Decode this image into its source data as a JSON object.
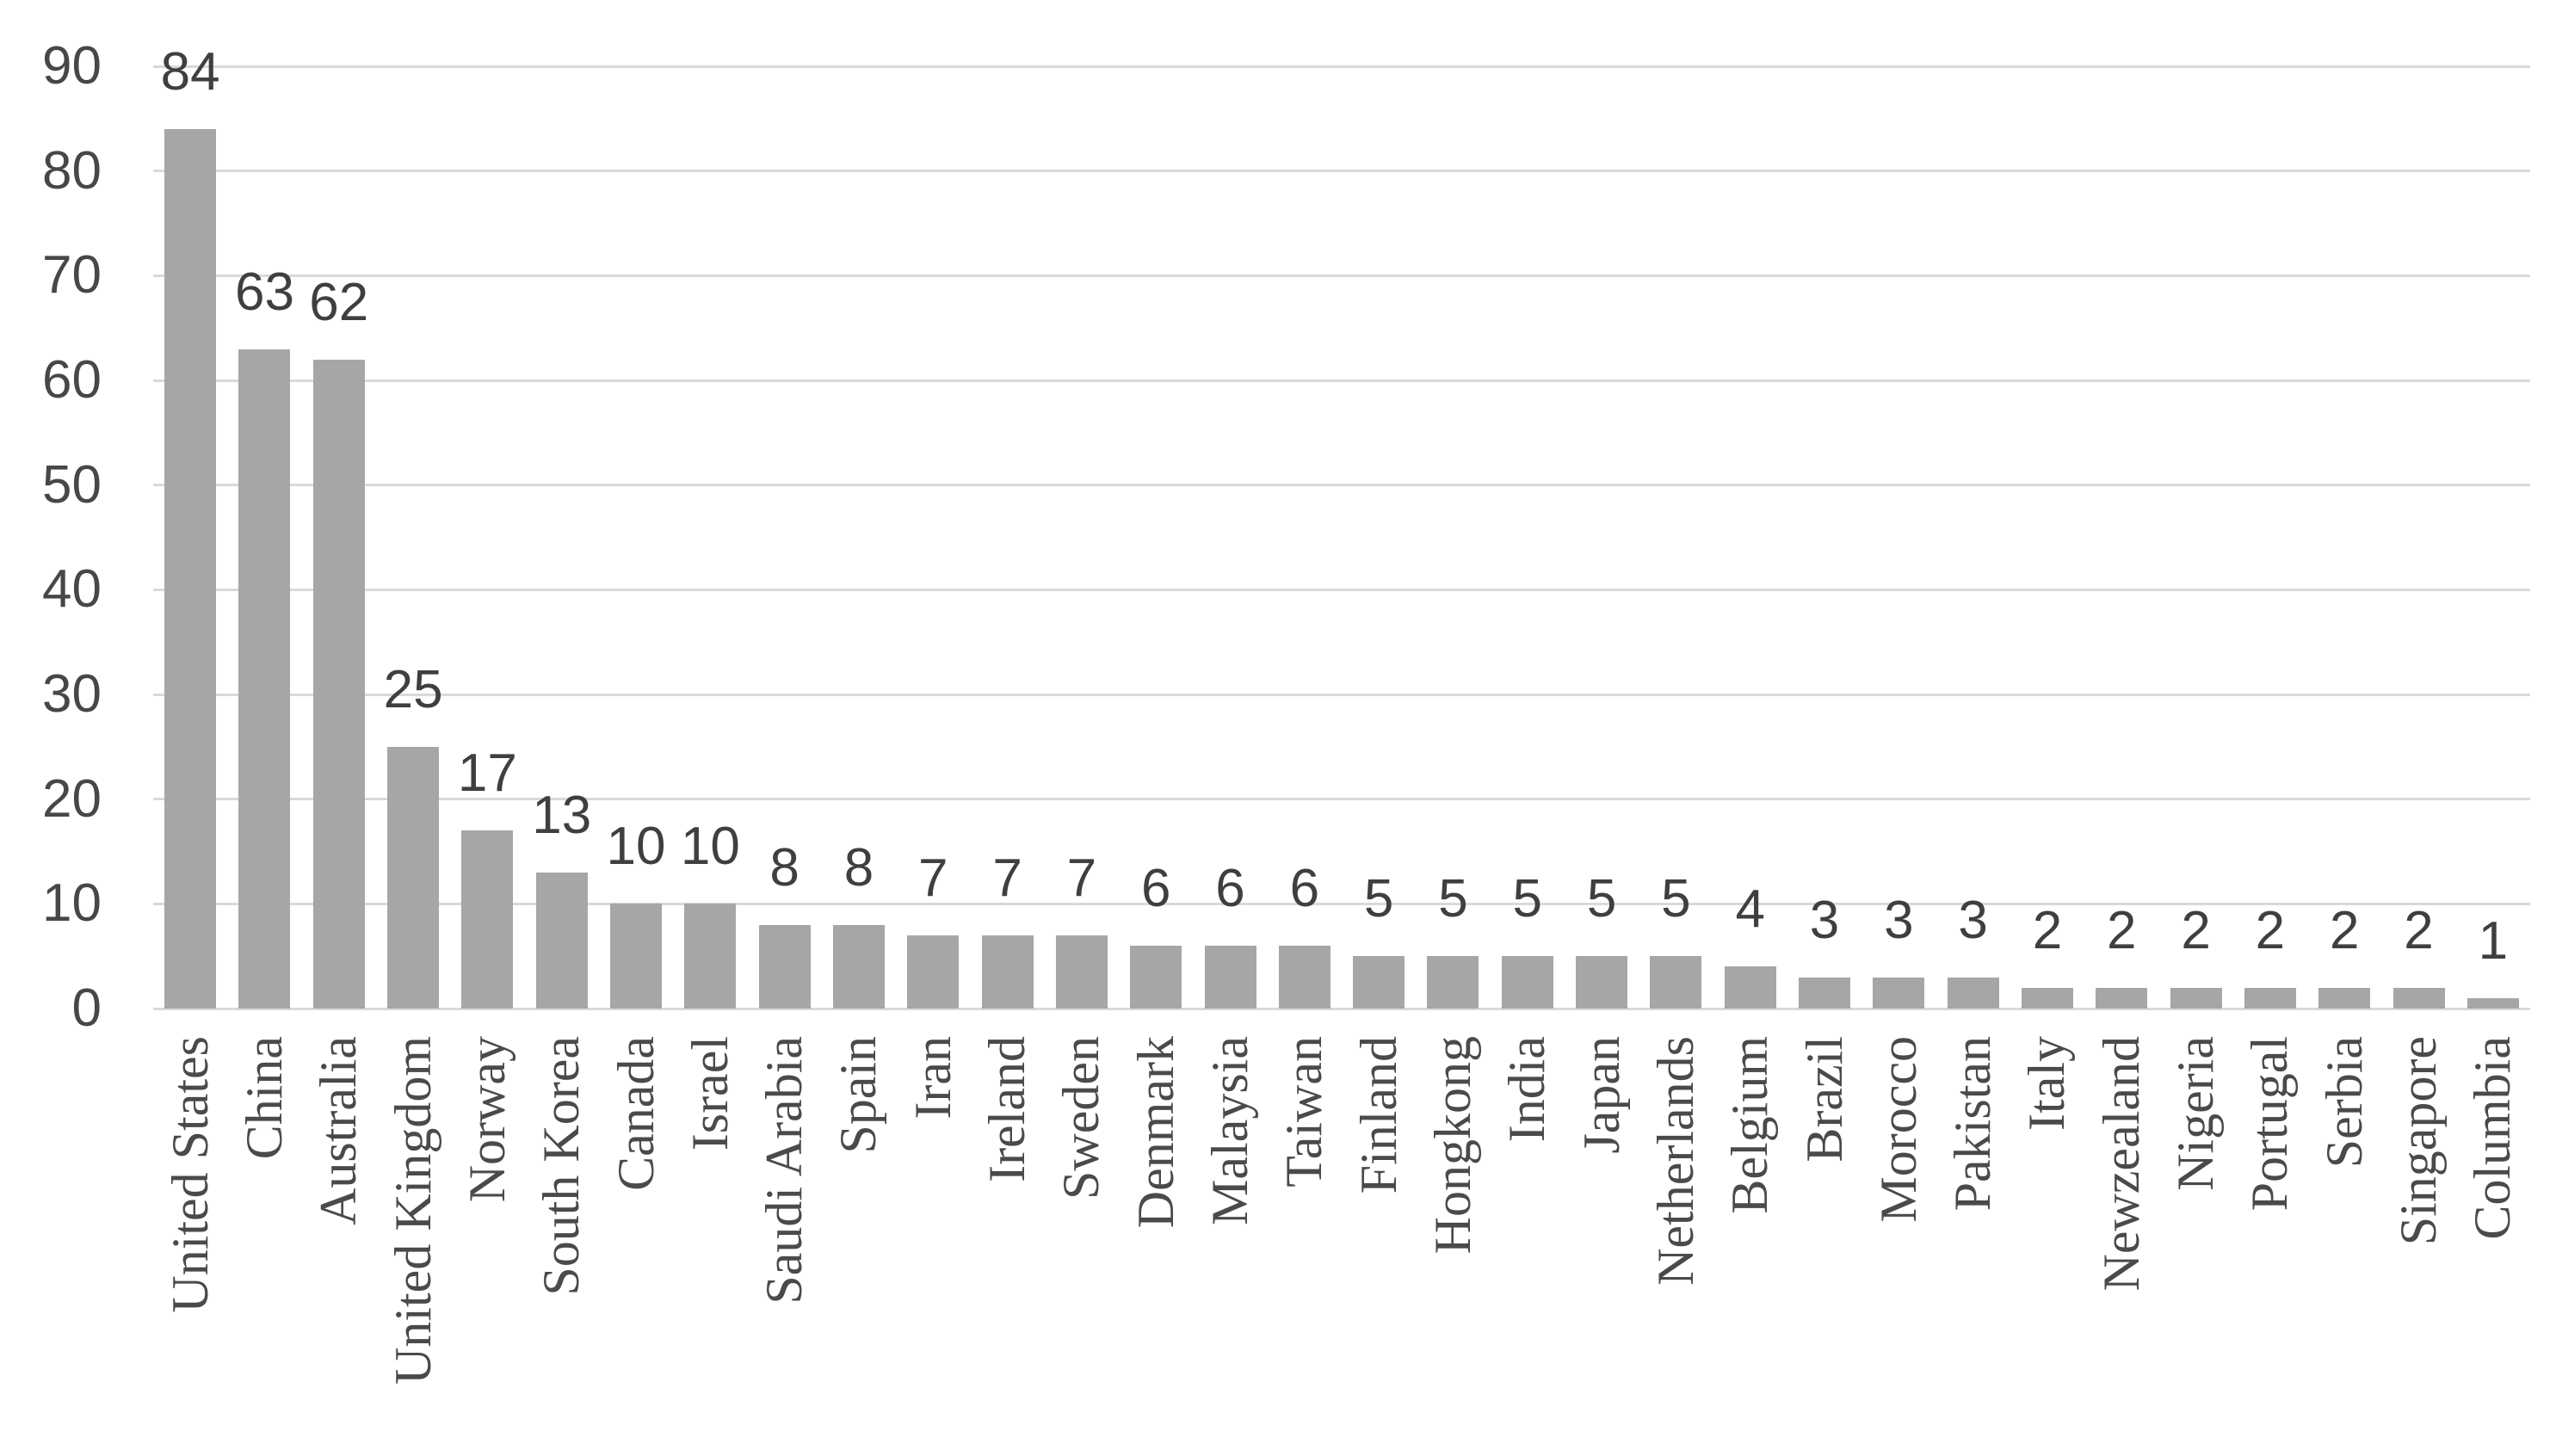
{
  "chart_data": {
    "type": "bar",
    "title": "",
    "xlabel": "",
    "ylabel": "",
    "categories": [
      "United States",
      "China",
      "Australia",
      "United Kingdom",
      "Norway",
      "South Korea",
      "Canada",
      "Israel",
      "Saudi Arabia",
      "Spain",
      "Iran",
      "Ireland",
      "Sweden",
      "Denmark",
      "Malaysia",
      "Taiwan",
      "Finland",
      "Hongkong",
      "India",
      "Japan",
      "Netherlands",
      "Belgium",
      "Brazil",
      "Morocco",
      "Pakistan",
      "Italy",
      "Newzealand",
      "Nigeria",
      "Portugal",
      "Serbia",
      "Singapore",
      "Columbia"
    ],
    "values": [
      84,
      63,
      62,
      25,
      17,
      13,
      10,
      10,
      8,
      8,
      7,
      7,
      7,
      6,
      6,
      6,
      5,
      5,
      5,
      5,
      5,
      4,
      3,
      3,
      3,
      2,
      2,
      2,
      2,
      2,
      2,
      1
    ],
    "ylim": [
      0,
      90
    ],
    "yticks": [
      0,
      10,
      20,
      30,
      40,
      50,
      60,
      70,
      80,
      90
    ],
    "grid": true,
    "legend_position": "none",
    "data_labels_shown": true,
    "colors": {
      "bar": "#a6a6a6",
      "gridline": "#d9d9d9",
      "value_label_text": "#3f3f3f",
      "axis_tick_text": "#474747",
      "category_label_text": "#4a4a4a",
      "background": "#ffffff"
    }
  }
}
